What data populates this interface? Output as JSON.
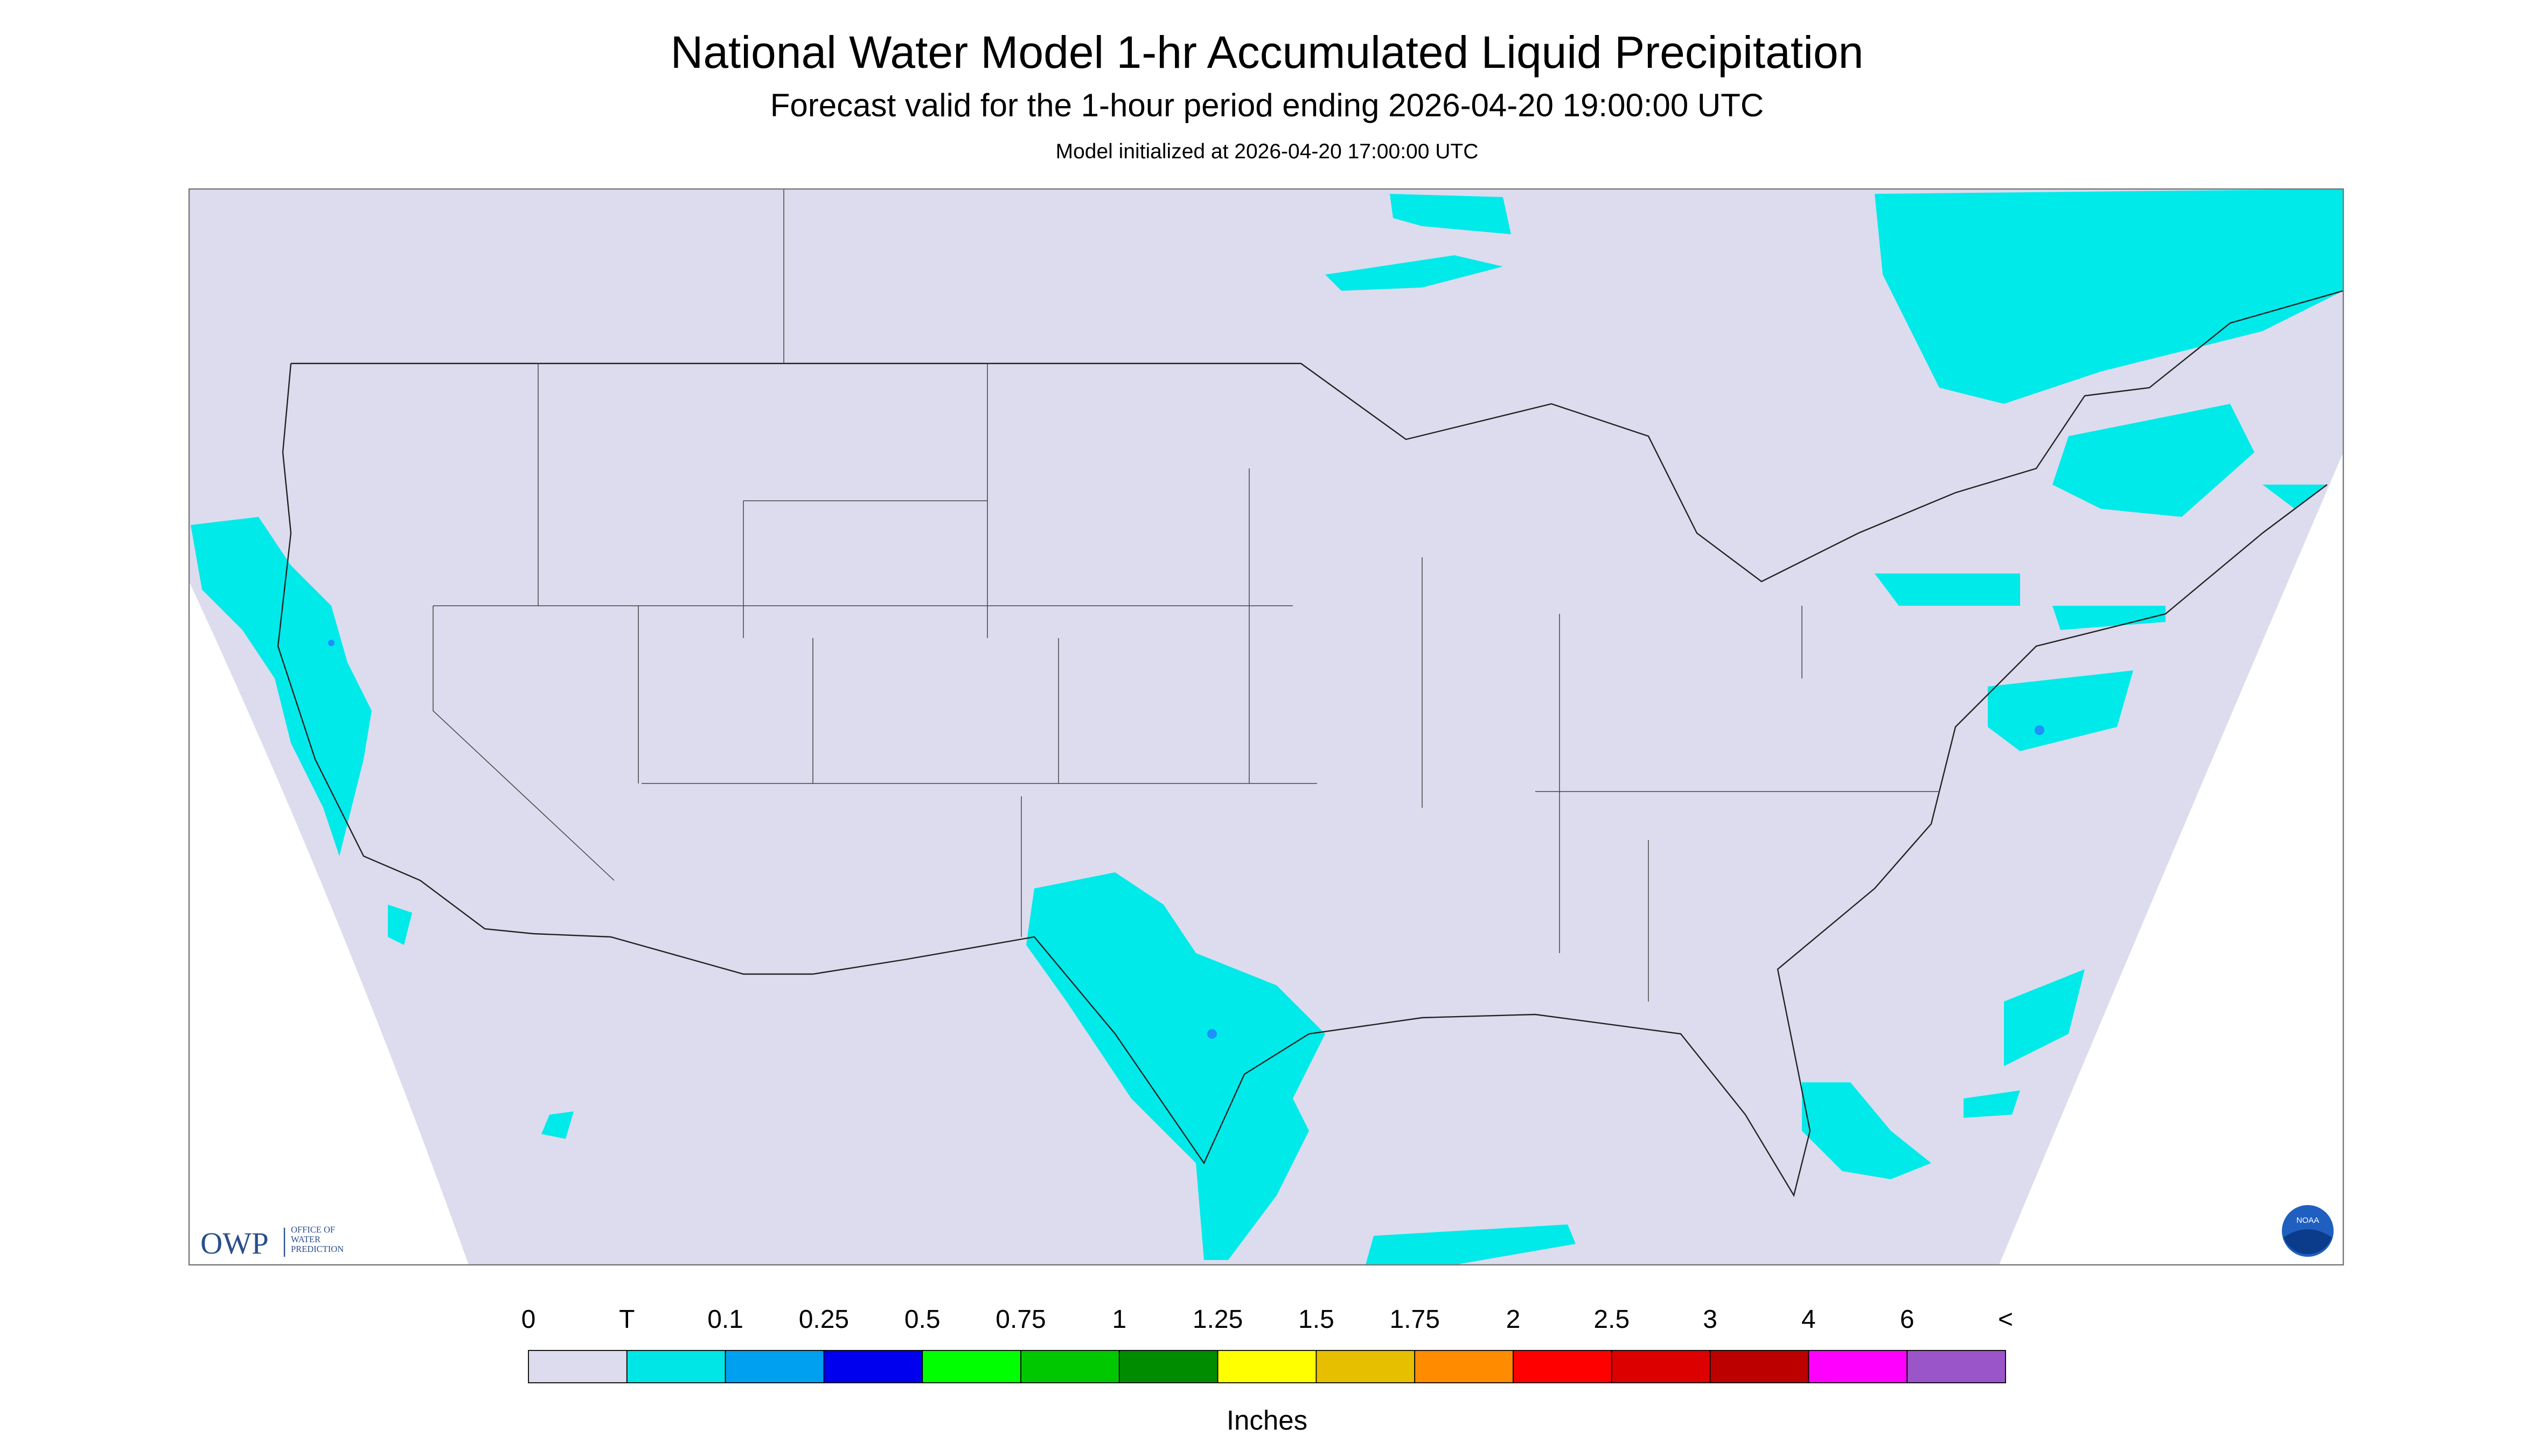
{
  "header": {
    "title": "National Water Model 1-hr Accumulated Liquid Precipitation",
    "subtitle": "Forecast valid for the 1-hour period ending 2026-04-20 19:00:00 UTC",
    "note": "Model initialized at 2026-04-20 17:00:00 UTC"
  },
  "logos": {
    "owp": "OWP",
    "owp_lines": [
      "OFFICE OF",
      "WATER",
      "PREDICTION"
    ],
    "noaa": "NOAA"
  },
  "legend": {
    "labels": [
      "0",
      "T",
      "0.1",
      "0.25",
      "0.5",
      "0.75",
      "1",
      "1.25",
      "1.5",
      "1.75",
      "2",
      "2.5",
      "3",
      "4",
      "6",
      "<"
    ],
    "colors": [
      "#dcdcee",
      "#00e6e6",
      "#00a0f0",
      "#0000ee",
      "#00ff00",
      "#00c800",
      "#008c00",
      "#ffff00",
      "#e6c000",
      "#ff8c00",
      "#ff0000",
      "#dc0000",
      "#bc0000",
      "#ff00ff",
      "#9a55c8"
    ],
    "unit": "Inches"
  }
}
